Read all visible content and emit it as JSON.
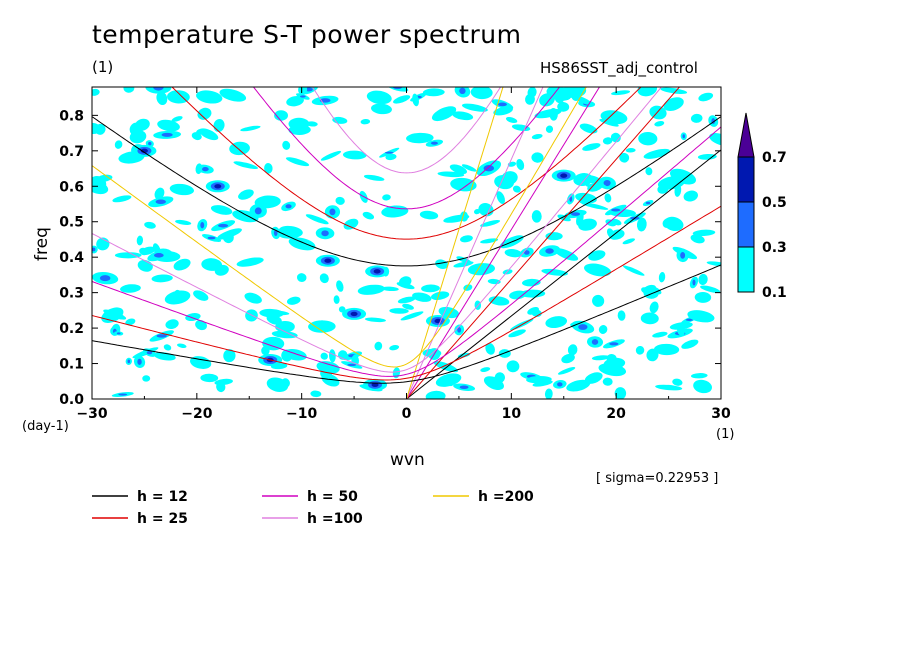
{
  "chart_data": {
    "type": "contour",
    "title": "temperature S-T power spectrum",
    "subtitle_left": "(1)",
    "subtitle_right": "HS86SST_adj_control",
    "xlabel": "wvn",
    "ylabel": "freq",
    "x_unit": "(1)",
    "y_unit": "(day-1)",
    "xlim": [
      -30,
      30
    ],
    "ylim": [
      0,
      0.88
    ],
    "xticks": [
      "-30",
      "-20",
      "-10",
      "0",
      "10",
      "20",
      "30"
    ],
    "yticks": [
      "0.0",
      "0.1",
      "0.2",
      "0.3",
      "0.4",
      "0.5",
      "0.6",
      "0.7",
      "0.8"
    ],
    "sigma_note": "[ sigma=0.22953 ]",
    "colorbar": {
      "levels": [
        "0.1",
        "0.3",
        "0.5",
        "0.7"
      ],
      "colors": [
        "#00ffff",
        "#1e6cff",
        "#0018b0",
        "#4b0096"
      ]
    },
    "dispersion_curves": [
      {
        "label": "h = 12",
        "h": 12,
        "color": "#000000",
        "branches": [
          "kelvin",
          "wig"
        ]
      },
      {
        "label": "h = 25",
        "h": 25,
        "color": "#e00000",
        "branches": [
          "kelvin",
          "wig"
        ]
      },
      {
        "label": "h = 50",
        "h": 50,
        "color": "#d000c0",
        "branches": [
          "kelvin",
          "wig"
        ]
      },
      {
        "label": "h =100",
        "h": 100,
        "color": "#e080e0",
        "branches": [
          "kelvin",
          "wig"
        ]
      },
      {
        "label": "h =200",
        "h": 200,
        "color": "#f0c800",
        "branches": [
          "kelvin"
        ]
      }
    ]
  }
}
